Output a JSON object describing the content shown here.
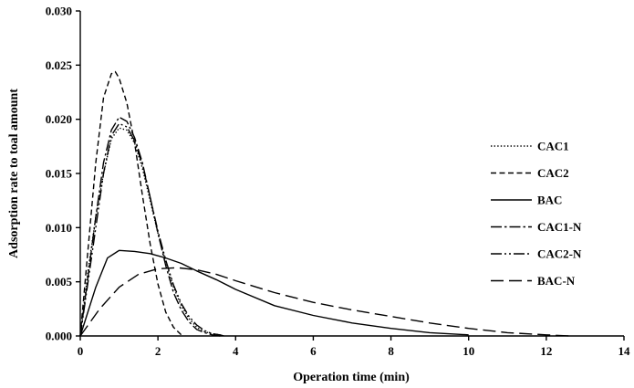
{
  "chart_data": {
    "type": "line",
    "title": "",
    "xlabel": "Operation time (min)",
    "ylabel": "Adsorption rate to toal amount",
    "xlim": [
      0,
      14
    ],
    "ylim": [
      0,
      0.03
    ],
    "xticks": [
      "0",
      "2",
      "4",
      "6",
      "8",
      "10",
      "12",
      "14"
    ],
    "yticks": [
      "0.000",
      "0.005",
      "0.010",
      "0.015",
      "0.020",
      "0.025",
      "0.030"
    ],
    "grid": false,
    "legend_position": "right",
    "series": [
      {
        "name": "CAC1",
        "dash": "dotted",
        "x": [
          0,
          0.2,
          0.4,
          0.6,
          0.8,
          1.0,
          1.2,
          1.4,
          1.6,
          1.8,
          2.0,
          2.2,
          2.4,
          2.6,
          2.8,
          3.0,
          3.2,
          3.4,
          3.6
        ],
        "y": [
          0,
          0.006,
          0.011,
          0.015,
          0.0182,
          0.0192,
          0.019,
          0.0178,
          0.0155,
          0.0125,
          0.0095,
          0.0068,
          0.0045,
          0.0028,
          0.0016,
          0.0008,
          0.0004,
          0.0002,
          0.0001
        ]
      },
      {
        "name": "CAC2",
        "dash": "dashed",
        "x": [
          0,
          0.2,
          0.4,
          0.6,
          0.8,
          0.9,
          1.0,
          1.2,
          1.4,
          1.6,
          1.8,
          2.0,
          2.2,
          2.4,
          2.6
        ],
        "y": [
          0,
          0.008,
          0.016,
          0.022,
          0.0242,
          0.0244,
          0.0238,
          0.0215,
          0.0178,
          0.013,
          0.0085,
          0.0048,
          0.0022,
          0.0008,
          0.0001
        ]
      },
      {
        "name": "BAC",
        "dash": "solid",
        "x": [
          0,
          0.4,
          0.7,
          1.0,
          1.4,
          1.8,
          2.2,
          2.6,
          3.0,
          3.5,
          4.0,
          5.0,
          6.0,
          7.0,
          8.0,
          9.0,
          10.0
        ],
        "y": [
          0,
          0.0045,
          0.0072,
          0.0079,
          0.0078,
          0.0076,
          0.0072,
          0.0067,
          0.006,
          0.0052,
          0.0043,
          0.0028,
          0.0019,
          0.0012,
          0.0007,
          0.0003,
          0.0001
        ]
      },
      {
        "name": "CAC1-N",
        "dash": "dashdot",
        "x": [
          0,
          0.2,
          0.4,
          0.6,
          0.8,
          1.0,
          1.2,
          1.4,
          1.6,
          1.8,
          2.0,
          2.2,
          2.4,
          2.6,
          2.8,
          3.0,
          3.2,
          3.4,
          3.6
        ],
        "y": [
          0,
          0.0055,
          0.011,
          0.016,
          0.019,
          0.0202,
          0.0198,
          0.0183,
          0.016,
          0.0128,
          0.0095,
          0.0065,
          0.004,
          0.0024,
          0.0013,
          0.0006,
          0.0003,
          0.0001,
          0
        ]
      },
      {
        "name": "CAC2-N",
        "dash": "dashdotdot",
        "x": [
          0,
          0.2,
          0.4,
          0.6,
          0.8,
          1.0,
          1.2,
          1.4,
          1.6,
          1.8,
          2.0,
          2.2,
          2.4,
          2.6,
          2.8,
          3.0,
          3.2,
          3.4,
          3.6,
          3.7
        ],
        "y": [
          0,
          0.005,
          0.01,
          0.015,
          0.0185,
          0.0196,
          0.0193,
          0.018,
          0.0158,
          0.0128,
          0.0097,
          0.007,
          0.0047,
          0.003,
          0.0018,
          0.001,
          0.0005,
          0.0002,
          0.0001,
          0
        ]
      },
      {
        "name": "BAC-N",
        "dash": "longdash",
        "x": [
          0,
          0.5,
          1.0,
          1.5,
          2.0,
          2.5,
          3.0,
          3.5,
          4.0,
          5.0,
          6.0,
          7.0,
          8.0,
          9.0,
          10.0,
          11.0,
          12.0,
          12.6
        ],
        "y": [
          0,
          0.0025,
          0.0045,
          0.0057,
          0.0062,
          0.0063,
          0.0061,
          0.0057,
          0.0051,
          0.004,
          0.0031,
          0.0024,
          0.0018,
          0.0012,
          0.0007,
          0.0003,
          0.0001,
          0
        ]
      }
    ]
  }
}
